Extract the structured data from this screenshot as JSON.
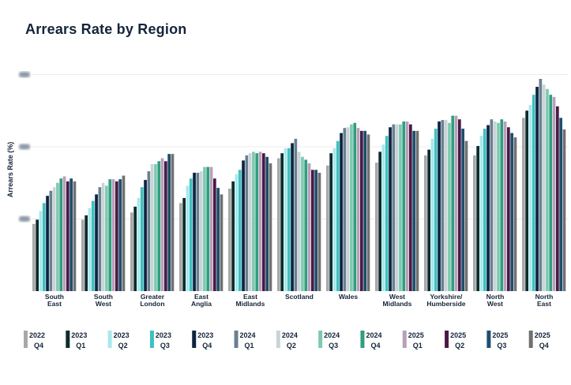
{
  "chart_data": {
    "type": "bar",
    "title": "Arrears Rate by Region",
    "xlabel": "",
    "ylabel": "Arrears Rate (%)",
    "ylim": [
      0,
      3.15
    ],
    "yticks": [
      1,
      2,
      3
    ],
    "ytick_labels_obscured": true,
    "grid": true,
    "legend_position": "bottom",
    "categories": [
      [
        "South",
        "East"
      ],
      [
        "South",
        "West"
      ],
      [
        "Greater",
        "London"
      ],
      [
        "East",
        "Anglia"
      ],
      [
        "East",
        "Midlands"
      ],
      [
        "Scotland"
      ],
      [
        "Wales"
      ],
      [
        "West",
        "Midlands"
      ],
      [
        "Yorkshire/",
        "Humberside"
      ],
      [
        "North",
        "West"
      ],
      [
        "North",
        "East"
      ]
    ],
    "series": [
      {
        "name": [
          "2022",
          "Q4"
        ],
        "color": "#a8a8a8",
        "values": [
          0.93,
          0.99,
          1.09,
          1.22,
          1.42,
          1.84,
          1.74,
          1.78,
          1.88,
          1.88,
          2.4
        ]
      },
      {
        "name": [
          "2023",
          "Q1"
        ],
        "color": "#0d2b2b",
        "values": [
          0.99,
          1.05,
          1.17,
          1.29,
          1.52,
          1.91,
          1.91,
          1.93,
          1.96,
          2.01,
          2.5
        ]
      },
      {
        "name": [
          "2023",
          "Q2"
        ],
        "color": "#a8e8ec",
        "values": [
          1.11,
          1.15,
          1.29,
          1.46,
          1.62,
          1.98,
          1.98,
          2.03,
          2.11,
          2.15,
          2.58
        ]
      },
      {
        "name": [
          "2023",
          "Q3"
        ],
        "color": "#3fbfbf",
        "values": [
          1.22,
          1.25,
          1.44,
          1.56,
          1.68,
          1.98,
          2.08,
          2.15,
          2.25,
          2.25,
          2.72
        ]
      },
      {
        "name": [
          "2023",
          "Q4"
        ],
        "color": "#0c2340",
        "values": [
          1.32,
          1.34,
          1.54,
          1.64,
          1.81,
          2.05,
          2.19,
          2.27,
          2.35,
          2.3,
          2.83
        ]
      },
      {
        "name": [
          "2024",
          "Q1"
        ],
        "color": "#6a8090",
        "values": [
          1.39,
          1.44,
          1.66,
          1.64,
          1.88,
          2.11,
          2.26,
          2.31,
          2.37,
          2.38,
          2.94
        ]
      },
      {
        "name": [
          "2024",
          "Q2"
        ],
        "color": "#c8d4d8",
        "values": [
          1.44,
          1.5,
          1.76,
          1.66,
          1.91,
          1.93,
          2.27,
          2.31,
          2.37,
          2.35,
          2.86
        ]
      },
      {
        "name": [
          "2024",
          "Q3"
        ],
        "color": "#7fc9b0",
        "values": [
          1.5,
          1.46,
          1.76,
          1.72,
          1.93,
          1.86,
          2.31,
          2.31,
          2.33,
          2.33,
          2.8
        ]
      },
      {
        "name": [
          "2024",
          "Q4"
        ],
        "color": "#2e9e7e",
        "values": [
          1.56,
          1.55,
          1.8,
          1.72,
          1.91,
          1.82,
          2.33,
          2.35,
          2.43,
          2.38,
          2.72
        ]
      },
      {
        "name": [
          "2025",
          "Q1"
        ],
        "color": "#b8a0b8",
        "values": [
          1.59,
          1.55,
          1.84,
          1.72,
          1.93,
          1.77,
          2.26,
          2.35,
          2.43,
          2.35,
          2.69
        ]
      },
      {
        "name": [
          "2025",
          "Q2"
        ],
        "color": "#4a1a45",
        "values": [
          1.52,
          1.52,
          1.8,
          1.56,
          1.91,
          1.68,
          2.22,
          2.31,
          2.38,
          2.27,
          2.56
        ]
      },
      {
        "name": [
          "2025",
          "Q3"
        ],
        "color": "#1d4e6e",
        "values": [
          1.56,
          1.55,
          1.9,
          1.43,
          1.86,
          1.68,
          2.22,
          2.22,
          2.25,
          2.19,
          2.4
        ]
      },
      {
        "name": [
          "2025",
          "Q4"
        ],
        "color": "#707070",
        "values": [
          1.52,
          1.6,
          1.9,
          1.34,
          1.77,
          1.64,
          2.17,
          2.22,
          2.08,
          2.13,
          2.24
        ]
      }
    ]
  }
}
